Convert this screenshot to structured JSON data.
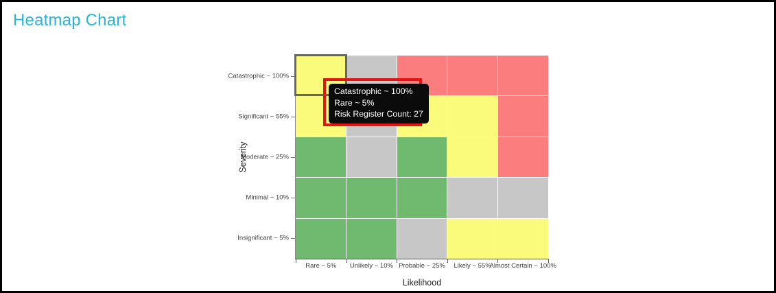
{
  "page": {
    "title": "Heatmap Chart"
  },
  "colors": {
    "title": "#26B7D7",
    "tooltip_bg": "#0B0B0B",
    "tooltip_text": "#FFFFFF",
    "tooltip_highlight_border": "#E31414",
    "selection_border": "#666666",
    "axis": "#5A5A5A",
    "label": "#3F3F3F"
  },
  "chart_data": {
    "type": "heatmap",
    "title": "Heatmap Chart",
    "xlabel": "Likelihood",
    "ylabel": "Severity",
    "x_categories": [
      "Rare ~ 5%",
      "Unlikely ~ 10%",
      "Probable ~ 25%",
      "Likely ~ 55%",
      "Almost Certain ~ 100%"
    ],
    "y_categories": [
      "Catastrophic ~ 100%",
      "Significant ~ 55%",
      "Moderate ~ 25%",
      "Minimal ~ 10%",
      "Insignificant ~ 5%"
    ],
    "legend_position": "none",
    "grid": "white 1px gaps between cells",
    "cell_palette": {
      "green": "#6FBA6F",
      "yellow": "#FBFB7B",
      "gray": "#C7C7C7",
      "red": "#FC7D7D"
    },
    "cells": [
      [
        "yellow",
        "gray",
        "red",
        "red",
        "red"
      ],
      [
        "yellow",
        "gray",
        "yellow",
        "yellow",
        "red"
      ],
      [
        "green",
        "gray",
        "green",
        "yellow",
        "red"
      ],
      [
        "green",
        "green",
        "green",
        "gray",
        "gray"
      ],
      [
        "green",
        "green",
        "gray",
        "yellow",
        "yellow"
      ]
    ],
    "selected_cell": {
      "severity": "Catastrophic ~ 100%",
      "likelihood": "Rare ~ 5%",
      "risk_register_count": 27
    },
    "tooltip": {
      "lines": [
        "Catastrophic ~ 100%",
        "Rare ~ 5%",
        "Risk Register Count: 27"
      ]
    }
  }
}
